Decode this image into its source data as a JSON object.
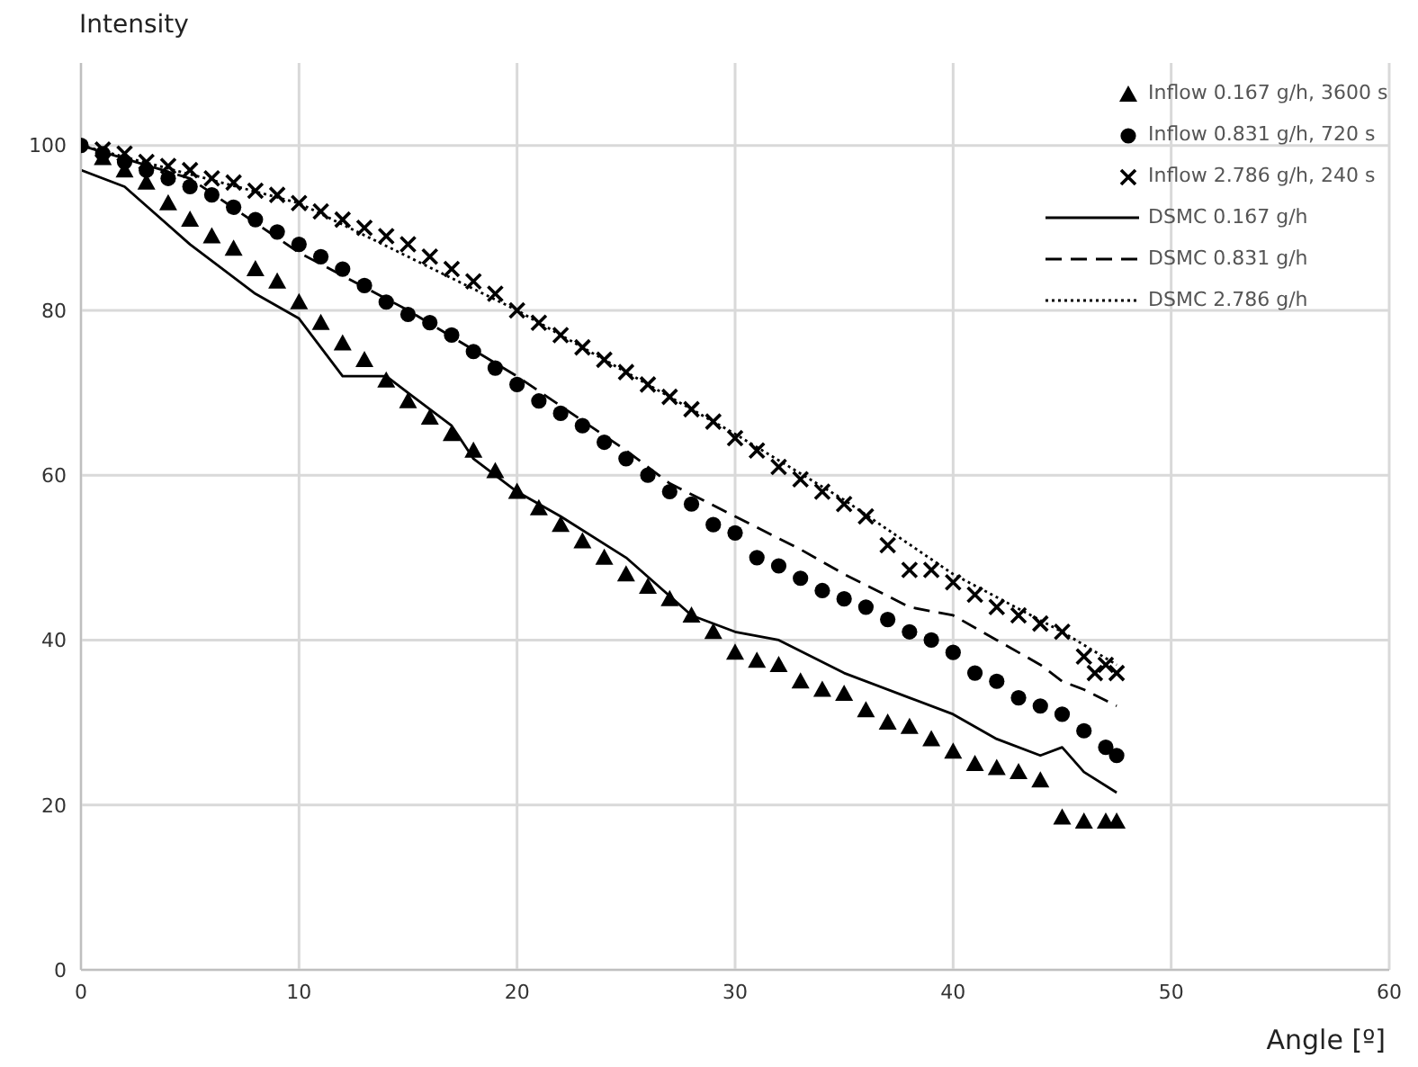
{
  "chart_data": {
    "type": "scatter",
    "xlabel": "Angle [º]",
    "ylabel": "Intensity",
    "xlim": [
      0,
      60
    ],
    "xticks": [
      0,
      10,
      20,
      30,
      40,
      50,
      60
    ],
    "ylim": [
      0,
      110
    ],
    "yticks": [
      0,
      20,
      40,
      60,
      80,
      100
    ],
    "grid": true,
    "legend": "top right",
    "series": [
      {
        "name": "Inflow 0.167 g/h, 3600 s",
        "type": "scatter",
        "marker": "triangle",
        "color": "#000000",
        "x": [
          1,
          2,
          3,
          4,
          5,
          6,
          7,
          8,
          9,
          10,
          11,
          12,
          13,
          14,
          15,
          16,
          17,
          18,
          19,
          20,
          21,
          22,
          23,
          24,
          25,
          26,
          27,
          28,
          29,
          30,
          31,
          32,
          33,
          34,
          35,
          36,
          37,
          38,
          39,
          40,
          41,
          42,
          43,
          44,
          45,
          46,
          47,
          47.5
        ],
        "values": [
          98.5,
          97,
          95.5,
          93,
          91,
          89,
          87.5,
          85,
          83.5,
          81,
          78.5,
          76,
          74,
          71.5,
          69,
          67,
          65,
          63,
          60.5,
          58,
          56,
          54,
          52,
          50,
          48,
          46.5,
          45,
          43,
          41,
          38.5,
          37.5,
          37,
          35,
          34,
          33.5,
          31.5,
          30,
          29.5,
          28,
          26.5,
          25,
          24.5,
          24,
          23,
          18.5,
          18,
          18,
          18
        ]
      },
      {
        "name": "Inflow 0.831 g/h, 720 s",
        "type": "scatter",
        "marker": "circle",
        "color": "#000000",
        "x": [
          0,
          1,
          2,
          3,
          4,
          5,
          6,
          7,
          8,
          9,
          10,
          11,
          12,
          13,
          14,
          15,
          16,
          17,
          18,
          19,
          20,
          21,
          22,
          23,
          24,
          25,
          26,
          27,
          28,
          29,
          30,
          31,
          32,
          33,
          34,
          35,
          36,
          37,
          38,
          39,
          40,
          41,
          42,
          43,
          44,
          45,
          46,
          47,
          47.5
        ],
        "values": [
          100,
          99,
          98,
          97,
          96,
          95,
          94,
          92.5,
          91,
          89.5,
          88,
          86.5,
          85,
          83,
          81,
          79.5,
          78.5,
          77,
          75,
          73,
          71,
          69,
          67.5,
          66,
          64,
          62,
          60,
          58,
          56.5,
          54,
          53,
          50,
          49,
          47.5,
          46,
          45,
          44,
          42.5,
          41,
          40,
          38.5,
          36,
          35,
          33,
          32,
          31,
          29,
          27,
          26
        ]
      },
      {
        "name": "Inflow 2.786 g/h, 240 s",
        "marker": "cross",
        "color": "#000000",
        "x": [
          1,
          2,
          3,
          4,
          5,
          6,
          7,
          8,
          9,
          10,
          11,
          12,
          13,
          14,
          15,
          16,
          17,
          18,
          19,
          20,
          21,
          22,
          23,
          24,
          25,
          26,
          27,
          28,
          29,
          30,
          31,
          32,
          33,
          34,
          35,
          36,
          37,
          38,
          39,
          40,
          41,
          42,
          43,
          44,
          45,
          46,
          46.5,
          47,
          47.5
        ],
        "values": [
          99.5,
          99,
          98,
          97.5,
          97,
          96,
          95.5,
          94.5,
          94,
          93,
          92,
          91,
          90,
          89,
          88,
          86.5,
          85,
          83.5,
          82,
          80,
          78.5,
          77,
          75.5,
          74,
          72.5,
          71,
          69.5,
          68,
          66.5,
          64.5,
          63,
          61,
          59.5,
          58,
          56.5,
          55,
          51.5,
          48.5,
          48.5,
          47,
          45.5,
          44,
          43,
          42,
          41,
          38,
          36,
          37,
          36
        ]
      },
      {
        "name": "DSMC 0.167 g/h",
        "type": "line",
        "line_style": "solid",
        "color": "#000000",
        "x": [
          0,
          2,
          5,
          8,
          10,
          12,
          13,
          14,
          15,
          17,
          18,
          20,
          22,
          25,
          28,
          30,
          32,
          35,
          38,
          40,
          42,
          44,
          45,
          46,
          47.5
        ],
        "values": [
          97,
          95,
          88,
          82,
          79,
          72,
          72,
          72,
          70,
          66,
          62,
          58,
          55,
          50,
          43,
          41,
          40,
          36,
          33,
          31,
          28,
          26,
          27,
          24,
          21.5
        ]
      },
      {
        "name": "DSMC 0.831 g/h",
        "type": "line",
        "line_style": "dashed",
        "color": "#000000",
        "x": [
          0,
          5,
          10,
          15,
          20,
          25,
          27,
          30,
          33,
          35,
          38,
          40,
          42,
          44,
          45,
          46,
          47.5
        ],
        "values": [
          100,
          96,
          87,
          80,
          72,
          63,
          59,
          55,
          51,
          48,
          44,
          43,
          40,
          37,
          35,
          34,
          32
        ]
      },
      {
        "name": "DSMC 2.786 g/h",
        "type": "line",
        "line_style": "dotted",
        "color": "#000000",
        "x": [
          0,
          10,
          20,
          30,
          35,
          40,
          45,
          47.5
        ],
        "values": [
          100,
          93,
          80,
          65,
          57,
          48,
          41,
          37
        ]
      }
    ]
  }
}
